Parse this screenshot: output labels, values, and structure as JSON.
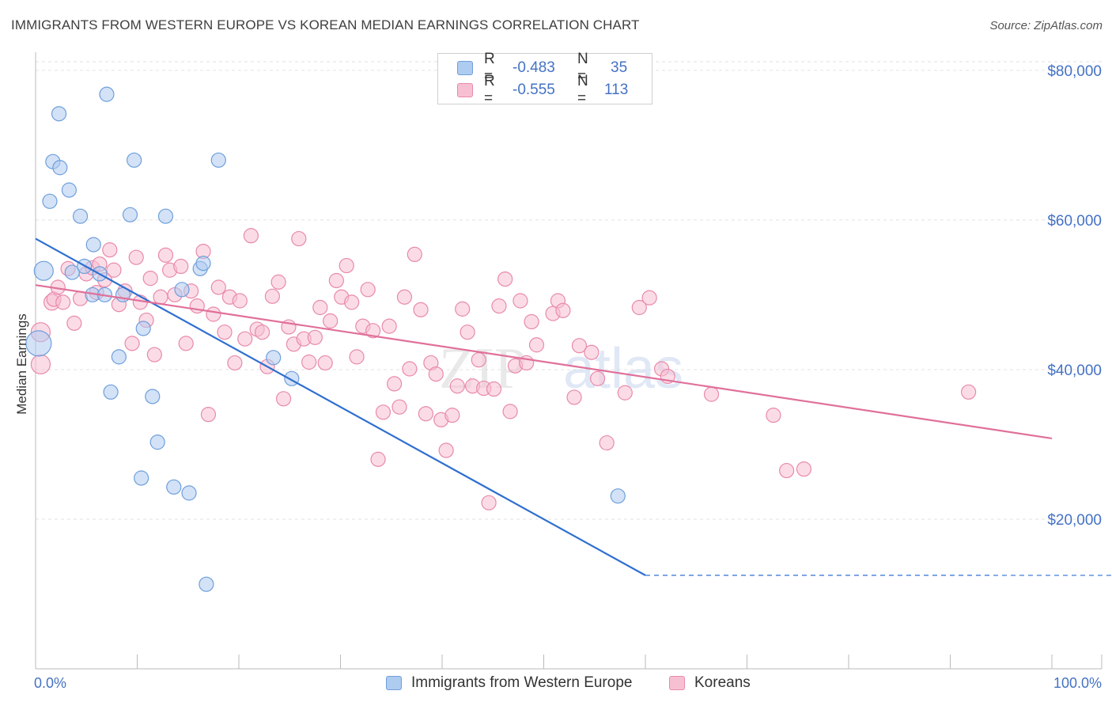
{
  "header": {
    "title": "IMMIGRANTS FROM WESTERN EUROPE VS KOREAN MEDIAN EARNINGS CORRELATION CHART",
    "source": "Source: ZipAtlas.com"
  },
  "watermark": {
    "zip": "ZIP",
    "atlas": "atlas"
  },
  "legend": {
    "rows": [
      {
        "r_label": "R =",
        "r_value": "-0.483",
        "n_label": "N =",
        "n_value": "35",
        "color": "#aecbf0",
        "stroke": "#6f9fdc"
      },
      {
        "r_label": "R =",
        "r_value": "-0.555",
        "n_label": "N =",
        "n_value": "113",
        "color": "#f7c0d2",
        "stroke": "#e88aaa"
      }
    ]
  },
  "bottom_legend": {
    "items": [
      {
        "label": "Immigrants from Western Europe",
        "color": "#aecbf0",
        "stroke": "#6f9fdc"
      },
      {
        "label": "Koreans",
        "color": "#f7c0d2",
        "stroke": "#e88aaa"
      }
    ]
  },
  "chart_data": {
    "type": "scatter",
    "title": "IMMIGRANTS FROM WESTERN EUROPE VS KOREAN MEDIAN EARNINGS CORRELATION CHART",
    "xlabel": "",
    "ylabel": "Median Earnings",
    "xlim": [
      0,
      100
    ],
    "ylim": [
      0,
      82000
    ],
    "x_tick_labels": [
      "0.0%",
      "100.0%"
    ],
    "y_ticks": [
      20000,
      40000,
      60000,
      80000
    ],
    "y_tick_labels": [
      "$20,000",
      "$40,000",
      "$60,000",
      "$80,000"
    ],
    "grid": true,
    "legend_position": "top-center",
    "series": [
      {
        "name": "Immigrants from Western Europe",
        "color": "#6f9fdc",
        "fill": "#aecbf0",
        "line_color": "#2f6fd0",
        "trend": {
          "x": [
            0,
            60
          ],
          "y": [
            57500,
            12500
          ],
          "dashed_to": [
            76800,
            0
          ]
        },
        "points": [
          [
            0.3,
            43500,
            16
          ],
          [
            0.8,
            53200,
            12
          ],
          [
            1.4,
            62500,
            9
          ],
          [
            1.7,
            67800,
            9
          ],
          [
            2.3,
            74200,
            9
          ],
          [
            2.4,
            67000,
            9
          ],
          [
            3.3,
            64000,
            9
          ],
          [
            3.6,
            53000,
            9
          ],
          [
            4.4,
            60500,
            9
          ],
          [
            4.8,
            53800,
            9
          ],
          [
            5.7,
            56700,
            9
          ],
          [
            5.6,
            50000,
            9
          ],
          [
            6.3,
            52800,
            9
          ],
          [
            6.8,
            50000,
            9
          ],
          [
            7.0,
            76800,
            9
          ],
          [
            7.4,
            37000,
            9
          ],
          [
            8.2,
            41700,
            9
          ],
          [
            8.6,
            50000,
            9
          ],
          [
            9.3,
            60700,
            9
          ],
          [
            9.7,
            68000,
            9
          ],
          [
            10.6,
            45500,
            9
          ],
          [
            10.4,
            25500,
            9
          ],
          [
            11.5,
            36400,
            9
          ],
          [
            12.0,
            30300,
            9
          ],
          [
            12.8,
            60500,
            9
          ],
          [
            13.6,
            24300,
            9
          ],
          [
            14.4,
            50700,
            9
          ],
          [
            15.1,
            23500,
            9
          ],
          [
            16.2,
            53500,
            9
          ],
          [
            16.5,
            54200,
            9
          ],
          [
            16.8,
            11300,
            9
          ],
          [
            18.0,
            68000,
            9
          ],
          [
            23.4,
            41600,
            9
          ],
          [
            25.2,
            38800,
            9
          ],
          [
            57.3,
            23100,
            9
          ]
        ]
      },
      {
        "name": "Koreans",
        "color": "#e88aaa",
        "fill": "#f7c0d2",
        "line_color": "#e0709a",
        "trend": {
          "x": [
            0,
            100
          ],
          "y": [
            51300,
            30800
          ]
        },
        "points": [
          [
            0.5,
            45000,
            12
          ],
          [
            0.5,
            40700,
            12
          ],
          [
            1.6,
            49000,
            10
          ],
          [
            1.8,
            49400,
            9
          ],
          [
            2.2,
            51000,
            9
          ],
          [
            2.7,
            49000,
            9
          ],
          [
            3.2,
            53500,
            9
          ],
          [
            3.8,
            46200,
            9
          ],
          [
            4.4,
            49500,
            9
          ],
          [
            5.0,
            52800,
            9
          ],
          [
            5.6,
            53600,
            9
          ],
          [
            6.0,
            50300,
            9
          ],
          [
            6.3,
            54100,
            9
          ],
          [
            6.8,
            52000,
            9
          ],
          [
            7.3,
            56000,
            9
          ],
          [
            7.7,
            53300,
            9
          ],
          [
            8.2,
            48700,
            9
          ],
          [
            8.8,
            50500,
            9
          ],
          [
            9.5,
            43500,
            9
          ],
          [
            9.9,
            55000,
            9
          ],
          [
            10.3,
            49000,
            9
          ],
          [
            10.9,
            46600,
            9
          ],
          [
            11.3,
            52200,
            9
          ],
          [
            11.7,
            42000,
            9
          ],
          [
            12.3,
            49700,
            9
          ],
          [
            12.8,
            55300,
            9
          ],
          [
            13.2,
            53300,
            9
          ],
          [
            13.7,
            50000,
            9
          ],
          [
            14.3,
            53800,
            9
          ],
          [
            14.8,
            43500,
            9
          ],
          [
            15.3,
            50500,
            9
          ],
          [
            15.9,
            48500,
            9
          ],
          [
            16.5,
            55800,
            9
          ],
          [
            17.0,
            34000,
            9
          ],
          [
            17.5,
            47400,
            9
          ],
          [
            18.0,
            51000,
            9
          ],
          [
            18.6,
            45000,
            9
          ],
          [
            19.1,
            49700,
            9
          ],
          [
            19.6,
            40900,
            9
          ],
          [
            20.1,
            49200,
            9
          ],
          [
            20.6,
            44100,
            9
          ],
          [
            21.2,
            57900,
            9
          ],
          [
            21.8,
            45400,
            9
          ],
          [
            22.3,
            45000,
            9
          ],
          [
            22.8,
            40400,
            9
          ],
          [
            23.3,
            49800,
            9
          ],
          [
            23.9,
            51700,
            9
          ],
          [
            24.4,
            36100,
            9
          ],
          [
            24.9,
            45700,
            9
          ],
          [
            25.4,
            43400,
            9
          ],
          [
            25.9,
            57500,
            9
          ],
          [
            26.4,
            44100,
            9
          ],
          [
            26.9,
            41000,
            9
          ],
          [
            27.5,
            44300,
            9
          ],
          [
            28.0,
            48300,
            9
          ],
          [
            28.5,
            40900,
            9
          ],
          [
            29.0,
            46500,
            9
          ],
          [
            29.6,
            51900,
            9
          ],
          [
            30.1,
            49700,
            9
          ],
          [
            30.6,
            53900,
            9
          ],
          [
            31.1,
            49000,
            9
          ],
          [
            31.6,
            41700,
            9
          ],
          [
            32.2,
            45800,
            9
          ],
          [
            32.7,
            50700,
            9
          ],
          [
            33.2,
            45200,
            9
          ],
          [
            33.7,
            28000,
            9
          ],
          [
            34.2,
            34300,
            9
          ],
          [
            34.8,
            45800,
            9
          ],
          [
            35.3,
            38100,
            9
          ],
          [
            35.8,
            35000,
            9
          ],
          [
            36.3,
            49700,
            9
          ],
          [
            36.8,
            40100,
            9
          ],
          [
            37.3,
            55400,
            9
          ],
          [
            37.9,
            48000,
            9
          ],
          [
            38.4,
            34100,
            9
          ],
          [
            38.9,
            40900,
            9
          ],
          [
            39.4,
            39400,
            9
          ],
          [
            39.9,
            33300,
            9
          ],
          [
            40.4,
            29200,
            9
          ],
          [
            41.0,
            33900,
            9
          ],
          [
            41.5,
            37800,
            9
          ],
          [
            42.0,
            48100,
            9
          ],
          [
            42.5,
            45000,
            9
          ],
          [
            43.0,
            37800,
            9
          ],
          [
            43.6,
            41300,
            9
          ],
          [
            44.1,
            37500,
            9
          ],
          [
            44.6,
            22200,
            9
          ],
          [
            45.1,
            37400,
            9
          ],
          [
            45.6,
            48500,
            9
          ],
          [
            46.2,
            52100,
            9
          ],
          [
            46.7,
            34400,
            9
          ],
          [
            47.2,
            40500,
            9
          ],
          [
            47.7,
            49200,
            9
          ],
          [
            48.3,
            40900,
            9
          ],
          [
            48.8,
            46400,
            9
          ],
          [
            49.3,
            43300,
            9
          ],
          [
            50.9,
            47500,
            9
          ],
          [
            51.4,
            49200,
            9
          ],
          [
            51.9,
            47900,
            9
          ],
          [
            53.0,
            36300,
            9
          ],
          [
            53.5,
            43200,
            9
          ],
          [
            54.7,
            42300,
            9
          ],
          [
            55.3,
            38800,
            9
          ],
          [
            56.2,
            30200,
            9
          ],
          [
            58.0,
            36900,
            9
          ],
          [
            59.4,
            48300,
            9
          ],
          [
            60.4,
            49600,
            9
          ],
          [
            61.6,
            40100,
            9
          ],
          [
            62.2,
            39100,
            9
          ],
          [
            66.5,
            36700,
            9
          ],
          [
            72.6,
            33900,
            9
          ],
          [
            73.9,
            26500,
            9
          ],
          [
            75.6,
            26700,
            9
          ],
          [
            91.8,
            37000,
            9
          ]
        ]
      }
    ]
  }
}
